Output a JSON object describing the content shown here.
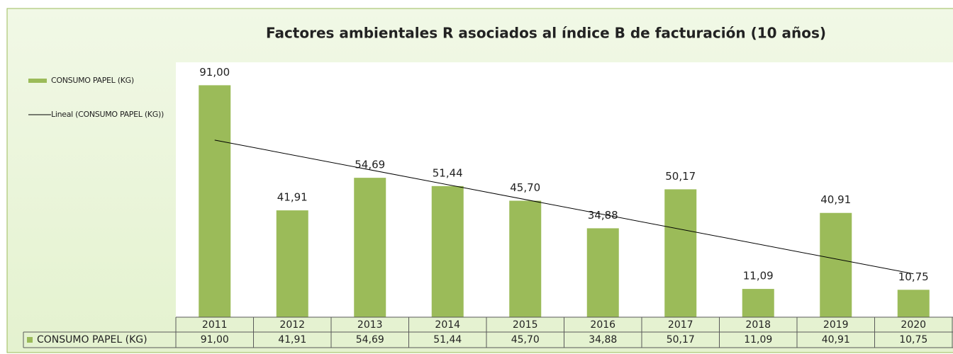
{
  "chart_data": {
    "type": "bar",
    "title": "Factores ambientales R asociados al índice B de facturación (10 años)",
    "categories": [
      "2011",
      "2012",
      "2013",
      "2014",
      "2015",
      "2016",
      "2017",
      "2018",
      "2019",
      "2020"
    ],
    "series": [
      {
        "name": "CONSUMO PAPEL (KG)",
        "color": "#9bbb59",
        "values": [
          91.0,
          41.91,
          54.69,
          51.44,
          45.7,
          34.88,
          50.17,
          11.09,
          40.91,
          10.75
        ],
        "value_labels": [
          "91,00",
          "41,91",
          "54,69",
          "51,44",
          "45,70",
          "34,88",
          "50,17",
          "11,09",
          "40,91",
          "10,75"
        ]
      }
    ],
    "trendline": {
      "label": "Lineal (CONSUMO PAPEL (KG))",
      "color": "#000000"
    },
    "ylim": [
      0,
      100
    ],
    "legend": "left",
    "data_table": true
  }
}
